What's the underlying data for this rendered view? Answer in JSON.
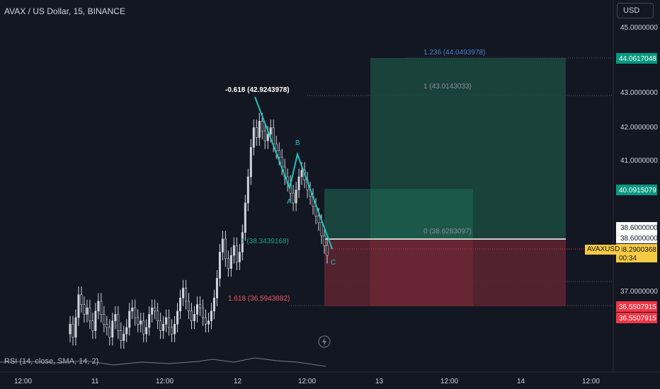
{
  "header": {
    "title": "AVAX / US Dollar, 15, BINANCE"
  },
  "currency_button": "USD",
  "rsi_label": "RSI (14, close, SMA, 14, 2)",
  "symbol_tag": "AVAXUSD",
  "colors": {
    "background": "#131722",
    "teal": "#22c1b8",
    "green_zone": "#1b4a40",
    "red_zone": "#5a2530",
    "green_tag": "#089981",
    "red_tag": "#f23645",
    "yellow_tag": "#f7ca43"
  },
  "price_scale": {
    "ticks": [
      "45.0000000",
      "44.0617048",
      "43.0000000",
      "42.0000000",
      "41.0000000",
      "40.0915079",
      "38.6000000",
      "38.6000000",
      "38.2900368",
      "37.0000000",
      "36.5507915",
      "36.5507915"
    ],
    "countdown": "00:34"
  },
  "time_axis": {
    "labels": [
      "12:00",
      "11",
      "12:00",
      "12",
      "12:00",
      "13",
      "12:00",
      "14",
      "12:00"
    ]
  },
  "fib_labels": {
    "level_1236": "1.236 (44.0493978)",
    "level_1": "1 (43.0143033)",
    "level_0": "0 (38.6283097)",
    "level_1a": "1 (38.3439168)",
    "level_1618": "1.618 (36.5943882)",
    "level_neg0618": "-0.618 (42.9243978)"
  },
  "wave_labels": {
    "A": "A",
    "B": "B",
    "C": "C"
  },
  "chart_data": {
    "type": "candlestick",
    "title": "AVAX / US Dollar, 15, BINANCE",
    "y_unit": "USD",
    "ylim": [
      35.6,
      45.6
    ],
    "current_price": 38.2900368,
    "long_target": 44.0617048,
    "long_stop": 36.5507915,
    "entry": 38.6,
    "alt_target": 40.0915079,
    "fib_levels": [
      {
        "ratio": 1.236,
        "value": 44.0493978
      },
      {
        "ratio": 1,
        "value": 43.0143033
      },
      {
        "ratio": 0,
        "value": 38.6283097
      },
      {
        "ratio": 1,
        "value": 38.3439168
      },
      {
        "ratio": 1.618,
        "value": 36.5943882
      },
      {
        "ratio": -0.618,
        "value": 42.9243978
      }
    ],
    "wave_points": [
      {
        "label": "",
        "price": 42.92
      },
      {
        "label": "A",
        "price": 40.13
      },
      {
        "label": "B",
        "price": 41.2
      },
      {
        "label": "C",
        "price": 38.6
      }
    ],
    "close_series": [
      36.2,
      36.5,
      36.1,
      36.7,
      37.4,
      37.1,
      36.8,
      37.0,
      36.6,
      36.3,
      36.9,
      37.2,
      36.8,
      36.5,
      36.4,
      36.1,
      36.6,
      36.8,
      36.3,
      36.0,
      36.2,
      36.4,
      36.9,
      37.0,
      36.7,
      36.5,
      36.6,
      36.2,
      36.4,
      36.8,
      37.0,
      36.9,
      36.6,
      36.3,
      36.5,
      36.7,
      36.4,
      36.2,
      36.5,
      36.9,
      37.3,
      37.6,
      37.2,
      36.9,
      36.6,
      36.8,
      37.1,
      37.0,
      36.7,
      36.5,
      36.6,
      36.9,
      37.3,
      37.9,
      38.7,
      39.1,
      38.5,
      38.2,
      38.6,
      38.9,
      38.4,
      38.7,
      39.3,
      40.2,
      41.0,
      41.9,
      42.5,
      42.2,
      42.7,
      42.4,
      42.1,
      42.3,
      42.5,
      42.0,
      41.8,
      41.6,
      41.3,
      41.0,
      40.8,
      40.5,
      40.2,
      40.6,
      41.0,
      41.2,
      40.9,
      40.6,
      40.4,
      40.1,
      39.8,
      39.6,
      39.2,
      38.9,
      38.6
    ]
  }
}
